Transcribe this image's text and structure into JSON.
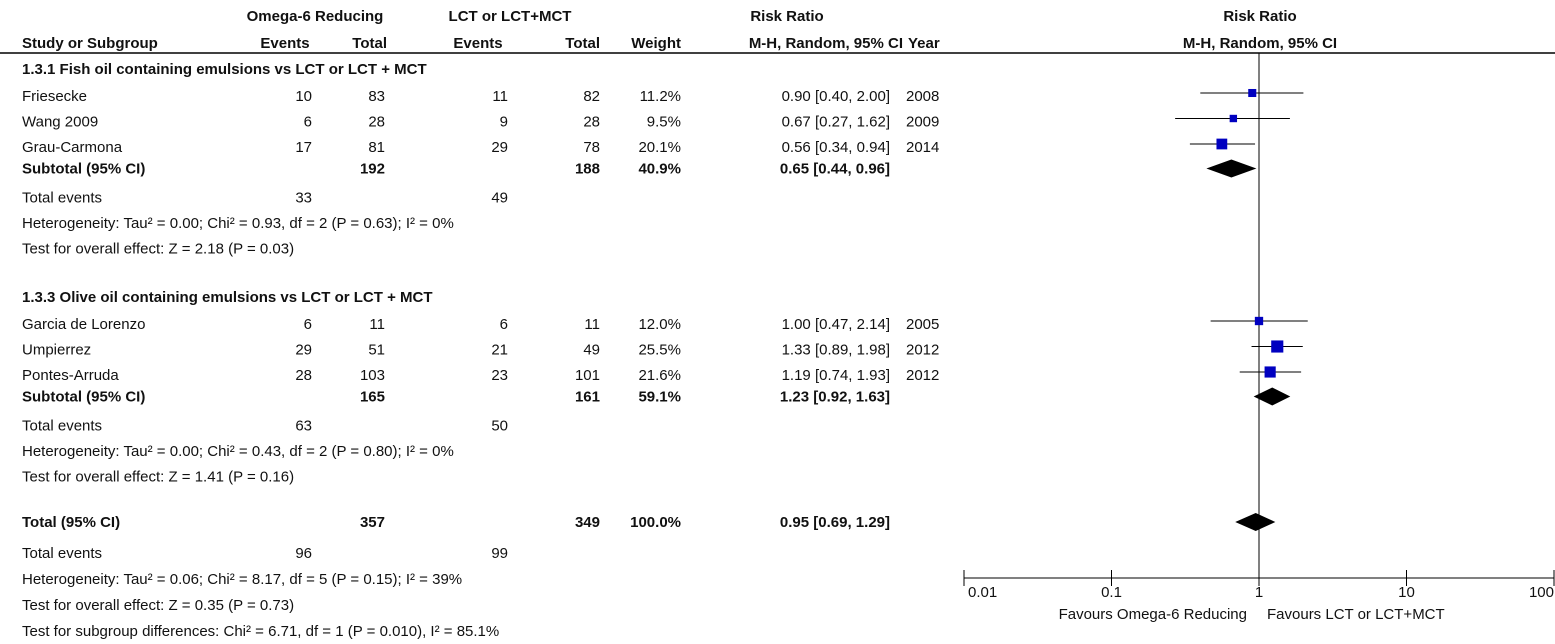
{
  "chart_data": {
    "type": "forest",
    "title": "Risk Ratio",
    "group_headers": [
      "Omega-6 Reducing",
      "LCT or LCT+MCT"
    ],
    "columns": [
      "Study or Subgroup",
      "Events",
      "Total",
      "Events",
      "Total",
      "Weight",
      "M-H, Random, 95% CI",
      "Year"
    ],
    "subgroups": [
      {
        "title": "1.3.1 Fish oil containing emulsions vs LCT or LCT + MCT",
        "studies": [
          {
            "name": "Friesecke",
            "events": [
              10,
              11
            ],
            "totals": [
              83,
              82
            ],
            "weight": 11.2,
            "weight_label": "11.2%",
            "rr": 0.9,
            "ci": [
              0.4,
              2.0
            ],
            "label": "0.90 [0.40, 2.00]",
            "year": 2008
          },
          {
            "name": "Wang 2009",
            "events": [
              6,
              9
            ],
            "totals": [
              28,
              28
            ],
            "weight": 9.5,
            "weight_label": "9.5%",
            "rr": 0.67,
            "ci": [
              0.27,
              1.62
            ],
            "label": "0.67 [0.27, 1.62]",
            "year": 2009
          },
          {
            "name": "Grau-Carmona",
            "events": [
              17,
              29
            ],
            "totals": [
              81,
              78
            ],
            "weight": 20.1,
            "weight_label": "20.1%",
            "rr": 0.56,
            "ci": [
              0.34,
              0.94
            ],
            "label": "0.56 [0.34, 0.94]",
            "year": 2014
          }
        ],
        "subtotal": {
          "name": "Subtotal (95% CI)",
          "totals": [
            192,
            188
          ],
          "weight": 40.9,
          "weight_label": "40.9%",
          "rr": 0.65,
          "ci": [
            0.44,
            0.96
          ],
          "label": "0.65 [0.44, 0.96]"
        },
        "events": {
          "name": "Total events",
          "values": [
            33,
            49
          ]
        },
        "notes": [
          "Heterogeneity: Tau² = 0.00; Chi² = 0.93, df = 2 (P = 0.63); I² = 0%",
          "Test for overall effect: Z = 2.18 (P = 0.03)"
        ]
      },
      {
        "title": "1.3.3 Olive oil containing emulsions vs LCT or LCT + MCT",
        "studies": [
          {
            "name": "Garcia de Lorenzo",
            "events": [
              6,
              6
            ],
            "totals": [
              11,
              11
            ],
            "weight": 12.0,
            "weight_label": "12.0%",
            "rr": 1.0,
            "ci": [
              0.47,
              2.14
            ],
            "label": "1.00 [0.47, 2.14]",
            "year": 2005
          },
          {
            "name": "Umpierrez",
            "events": [
              29,
              21
            ],
            "totals": [
              51,
              49
            ],
            "weight": 25.5,
            "weight_label": "25.5%",
            "rr": 1.33,
            "ci": [
              0.89,
              1.98
            ],
            "label": "1.33 [0.89, 1.98]",
            "year": 2012
          },
          {
            "name": "Pontes-Arruda",
            "events": [
              28,
              23
            ],
            "totals": [
              103,
              101
            ],
            "weight": 21.6,
            "weight_label": "21.6%",
            "rr": 1.19,
            "ci": [
              0.74,
              1.93
            ],
            "label": "1.19 [0.74, 1.93]",
            "year": 2012
          }
        ],
        "subtotal": {
          "name": "Subtotal (95% CI)",
          "totals": [
            165,
            161
          ],
          "weight": 59.1,
          "weight_label": "59.1%",
          "rr": 1.23,
          "ci": [
            0.92,
            1.63
          ],
          "label": "1.23 [0.92, 1.63]"
        },
        "events": {
          "name": "Total events",
          "values": [
            63,
            50
          ]
        },
        "notes": [
          "Heterogeneity: Tau² = 0.00; Chi² = 0.43, df = 2 (P = 0.80); I² = 0%",
          "Test for overall effect: Z = 1.41 (P = 0.16)"
        ]
      }
    ],
    "overall": {
      "name": "Total (95% CI)",
      "totals": [
        357,
        349
      ],
      "weight": 100.0,
      "weight_label": "100.0%",
      "rr": 0.95,
      "ci": [
        0.69,
        1.29
      ],
      "label": "0.95 [0.69, 1.29]",
      "events": {
        "name": "Total events",
        "values": [
          96,
          99
        ]
      },
      "notes": [
        "Heterogeneity: Tau² = 0.06; Chi² = 8.17, df = 5 (P = 0.15); I² = 39%",
        "Test for overall effect: Z = 0.35 (P = 0.73)",
        "Test for subgroup differences: Chi² = 6.71, df = 1 (P = 0.010), I² = 85.1%"
      ]
    },
    "log": true,
    "xlim": [
      0.01,
      100
    ],
    "xticks": [
      0.01,
      0.1,
      1,
      10,
      100
    ],
    "x_labels": [
      "Favours Omega-6 Reducing",
      "Favours LCT or LCT+MCT"
    ],
    "color": "#0000c0"
  }
}
